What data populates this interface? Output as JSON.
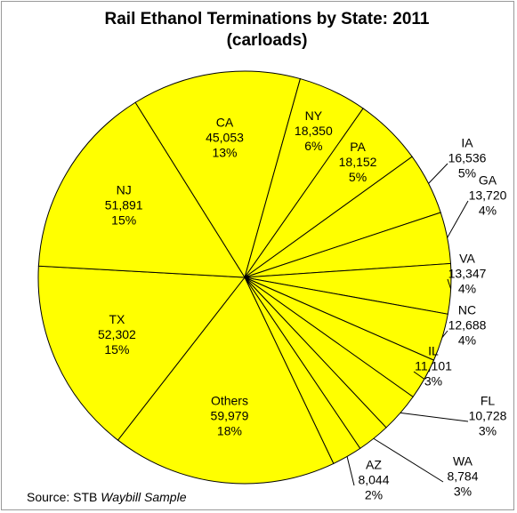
{
  "chart_data": {
    "type": "pie",
    "title": "Rail Ethanol Terminations by State: 2011",
    "subtitle": "(carloads)",
    "source": {
      "prefix": "Source: STB ",
      "italic": "Waybill Sample"
    },
    "color": "#ffff00",
    "categories": [
      "CA",
      "NY",
      "PA",
      "IA",
      "GA",
      "VA",
      "NC",
      "IL",
      "FL",
      "WA",
      "AZ",
      "Others",
      "TX",
      "NJ"
    ],
    "values": [
      45053,
      18350,
      18152,
      16536,
      13720,
      13347,
      12688,
      11101,
      10728,
      8784,
      8044,
      59979,
      52302,
      51891
    ],
    "value_labels": [
      "45,053",
      "18,350",
      "18,152",
      "16,536",
      "13,720",
      "13,347",
      "12,688",
      "11,101",
      "10,728",
      "8,784",
      "8,044",
      "59,979",
      "52,302",
      "51,891"
    ],
    "percent_labels": [
      "13%",
      "6%",
      "5%",
      "5%",
      "4%",
      "4%",
      "4%",
      "3%",
      "3%",
      "3%",
      "2%",
      "18%",
      "15%",
      "15%"
    ]
  }
}
